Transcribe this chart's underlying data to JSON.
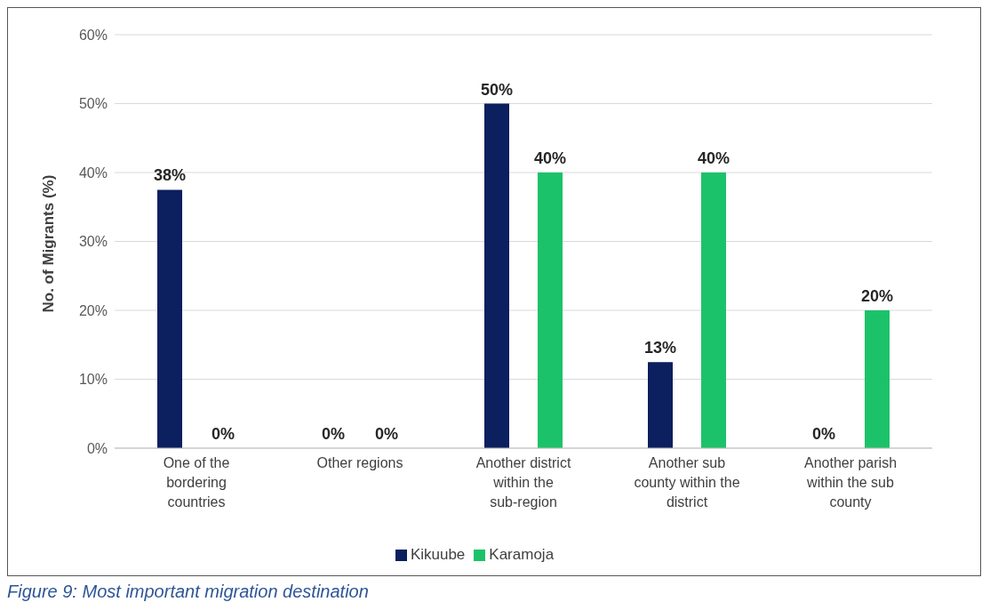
{
  "chart_data": {
    "type": "bar",
    "ylabel": "No. of Migrants (%)",
    "categories": [
      "One of the bordering countries",
      "Other regions",
      "Another district within the sub-region",
      "Another sub county within the district",
      "Another parish within the sub county"
    ],
    "series": [
      {
        "name": "Kikuube",
        "color": "#0c1f5e",
        "values": [
          37.5,
          0,
          50,
          12.5,
          0
        ],
        "value_labels": [
          "38%",
          "0%",
          "50%",
          "13%",
          "0%"
        ]
      },
      {
        "name": "Karamoja",
        "color": "#1cc26a",
        "values": [
          0,
          0,
          40,
          40,
          20
        ],
        "value_labels": [
          "0%",
          "0%",
          "40%",
          "40%",
          "20%"
        ]
      }
    ],
    "ylim": [
      0,
      60
    ],
    "yticks": [
      {
        "value": 0,
        "label": "0%"
      },
      {
        "value": 10,
        "label": "10%"
      },
      {
        "value": 20,
        "label": "20%"
      },
      {
        "value": 30,
        "label": "30%"
      },
      {
        "value": 40,
        "label": "40%"
      },
      {
        "value": 50,
        "label": "50%"
      },
      {
        "value": 60,
        "label": "60%"
      }
    ],
    "grid": "y",
    "legend": "bottom",
    "annotations": [
      "Figure 9: Most important migration destination"
    ]
  }
}
